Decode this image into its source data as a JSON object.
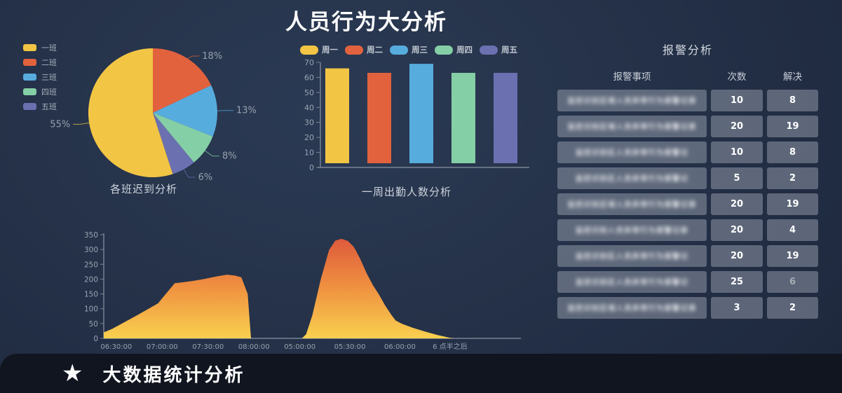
{
  "page": {
    "title": "人员行为大分析"
  },
  "footer": {
    "icon": "star-icon",
    "label": "大数据统计分析"
  },
  "chart_data": [
    {
      "id": "late-by-class-pie",
      "type": "pie",
      "title": "各班迟到分析",
      "legend_position": "top-left",
      "legend": [
        {
          "label": "一班",
          "color": "#F2C544"
        },
        {
          "label": "二班",
          "color": "#E2623E"
        },
        {
          "label": "三班",
          "color": "#57ACDE"
        },
        {
          "label": "四班",
          "color": "#85CFA6"
        },
        {
          "label": "五班",
          "color": "#6B70B0"
        }
      ],
      "slices_clockwise_from_top": [
        {
          "label": "二班",
          "pct": 18,
          "color": "#E2623E"
        },
        {
          "label": "三班",
          "pct": 13,
          "color": "#57ACDE"
        },
        {
          "label": "四班",
          "pct": 8,
          "color": "#85CFA6"
        },
        {
          "label": "五班",
          "pct": 6,
          "color": "#6B70B0"
        },
        {
          "label": "一班",
          "pct": 55,
          "color": "#F2C544"
        }
      ]
    },
    {
      "id": "weekly-attendance-bar",
      "type": "bar",
      "title": "一周出勤人数分析",
      "legend_position": "top",
      "categories": [
        "周一",
        "周二",
        "周三",
        "周四",
        "周五"
      ],
      "values": [
        66,
        63,
        69,
        63,
        63
      ],
      "colors": [
        "#F2C544",
        "#E2623E",
        "#57ACDE",
        "#85CFA6",
        "#6B70B0"
      ],
      "ylim": [
        0,
        70
      ],
      "yticks": [
        0,
        10,
        20,
        30,
        40,
        50,
        60,
        70
      ]
    },
    {
      "id": "time-flow-area",
      "type": "area",
      "title": "",
      "ylim": [
        0,
        350
      ],
      "yticks": [
        0,
        50,
        100,
        150,
        200,
        250,
        300,
        350
      ],
      "xtick_labels": [
        "06:30:00",
        "07:00:00",
        "07:30:00",
        "08:00:00",
        "05:00:00",
        "05:30:00",
        "06:00:00",
        "6 点半之后"
      ],
      "xtick_pos_pct": [
        3,
        14,
        25,
        36,
        47,
        59,
        71,
        83
      ],
      "gradient": {
        "top": "#DE5A3B",
        "mid": "#EF9040",
        "bottom": "#F9D04F"
      },
      "points_pct_value": [
        [
          0,
          20
        ],
        [
          2,
          32
        ],
        [
          8,
          78
        ],
        [
          13,
          118
        ],
        [
          17,
          186
        ],
        [
          21,
          193
        ],
        [
          24,
          200
        ],
        [
          27,
          209
        ],
        [
          29.5,
          215
        ],
        [
          31.5,
          212
        ],
        [
          33,
          206
        ],
        [
          34.5,
          150
        ],
        [
          35.3,
          0
        ],
        [
          47.5,
          0
        ],
        [
          48.5,
          14
        ],
        [
          50,
          78
        ],
        [
          52,
          198
        ],
        [
          54,
          298
        ],
        [
          55.5,
          330
        ],
        [
          57,
          336
        ],
        [
          58.5,
          329
        ],
        [
          60,
          308
        ],
        [
          61.5,
          268
        ],
        [
          63,
          220
        ],
        [
          64.5,
          180
        ],
        [
          66,
          147
        ],
        [
          67.5,
          110
        ],
        [
          69,
          78
        ],
        [
          70,
          60
        ],
        [
          71.5,
          49
        ],
        [
          74,
          36
        ],
        [
          77,
          23
        ],
        [
          80,
          11
        ],
        [
          83,
          2
        ],
        [
          84,
          0
        ]
      ]
    }
  ],
  "alarm_panel": {
    "title": "报警分析",
    "columns": [
      "报警事项",
      "次数",
      "解决"
    ],
    "rows": [
      {
        "item_blurred": "监控识别区域人员异常行为报警记录",
        "count": "10",
        "solved": "8"
      },
      {
        "item_blurred": "监控识别区域人员异常行为报警记录",
        "count": "20",
        "solved": "19"
      },
      {
        "item_blurred": "监控识别区人员异常行为报警记",
        "count": "10",
        "solved": "8"
      },
      {
        "item_blurred": "监控识别区人员异常行为报警记",
        "count": "5",
        "solved": "2"
      },
      {
        "item_blurred": "监控识别区域人员异常行为报警记录",
        "count": "20",
        "solved": "19"
      },
      {
        "item_blurred": "监控识别人员异常行为报警记录",
        "count": "20",
        "solved": "4"
      },
      {
        "item_blurred": "监控识别区人员异常行为报警记",
        "count": "20",
        "solved": "19"
      },
      {
        "item_blurred": "监控识别区人员异常行为报警记",
        "count": "25",
        "solved": "6",
        "solved_muted": true
      },
      {
        "item_blurred": "监控识别区域人员异常行为报警记录",
        "count": "3",
        "solved": "2"
      }
    ]
  }
}
